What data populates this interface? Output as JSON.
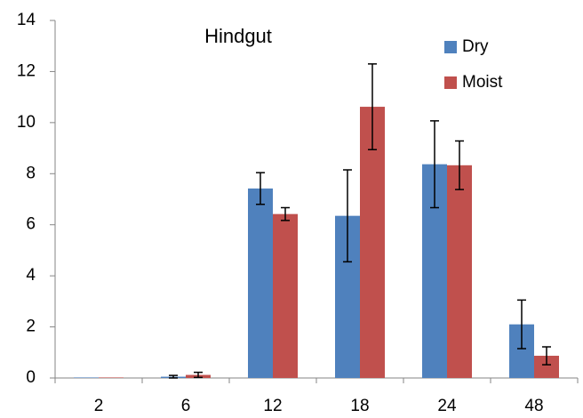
{
  "chart_data": {
    "type": "bar",
    "title": "Hindgut",
    "categories": [
      "2",
      "6",
      "12",
      "18",
      "24",
      "48"
    ],
    "series": [
      {
        "name": "Dry",
        "color": "#4f81bd",
        "values": [
          0.02,
          0.05,
          7.42,
          6.35,
          8.37,
          2.1
        ],
        "errors": [
          0,
          0.05,
          0.62,
          1.8,
          1.7,
          0.95
        ]
      },
      {
        "name": "Moist",
        "color": "#c0504d",
        "values": [
          0.02,
          0.12,
          6.42,
          10.62,
          8.33,
          0.87
        ],
        "errors": [
          0,
          0.1,
          0.25,
          1.68,
          0.95,
          0.35
        ]
      }
    ],
    "ylim": [
      0,
      14
    ],
    "yticks": [
      0,
      2,
      4,
      6,
      8,
      10,
      12,
      14
    ],
    "grid": false,
    "legend": "upper right"
  }
}
